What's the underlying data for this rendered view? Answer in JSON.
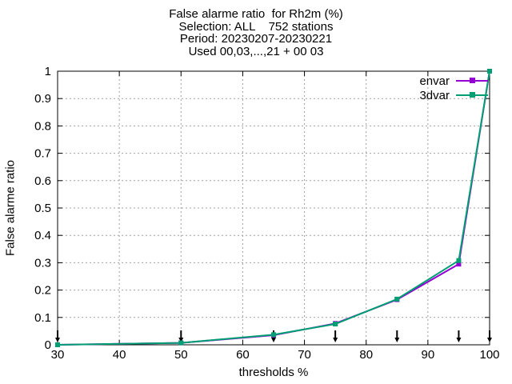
{
  "chart_data": {
    "type": "line",
    "title_lines": [
      "False alarme ratio  for Rh2m (%)",
      "Selection: ALL    752 stations",
      "Period: 20230207-20230221",
      "Used 00,03,...,21 + 00 03"
    ],
    "xlabel": "thresholds %",
    "ylabel": "False alarme ratio",
    "xlim": [
      30,
      100
    ],
    "ylim": [
      0,
      1
    ],
    "xticks": [
      30,
      40,
      50,
      60,
      70,
      80,
      90,
      100
    ],
    "yticks": [
      0,
      0.1,
      0.2,
      0.3,
      0.4,
      0.5,
      0.6,
      0.7,
      0.8,
      0.9,
      1
    ],
    "ytick_labels": [
      "0",
      "0.1",
      "0.2",
      "0.3",
      "0.4",
      "0.5",
      "0.6",
      "0.7",
      "0.8",
      "0.9",
      "1"
    ],
    "grid": true,
    "legend_position": "top-right",
    "threshold_markers": [
      30,
      50,
      65,
      75,
      85,
      95,
      100
    ],
    "series": [
      {
        "name": "envar",
        "color": "#9400d3",
        "x": [
          30,
          50,
          65,
          75,
          85,
          95,
          100
        ],
        "y": [
          0.0,
          0.007,
          0.035,
          0.078,
          0.165,
          0.295,
          1.0
        ]
      },
      {
        "name": "3dvar",
        "color": "#009e73",
        "x": [
          30,
          50,
          65,
          75,
          85,
          95,
          100
        ],
        "y": [
          0.0,
          0.007,
          0.037,
          0.076,
          0.167,
          0.308,
          1.0
        ]
      }
    ]
  }
}
